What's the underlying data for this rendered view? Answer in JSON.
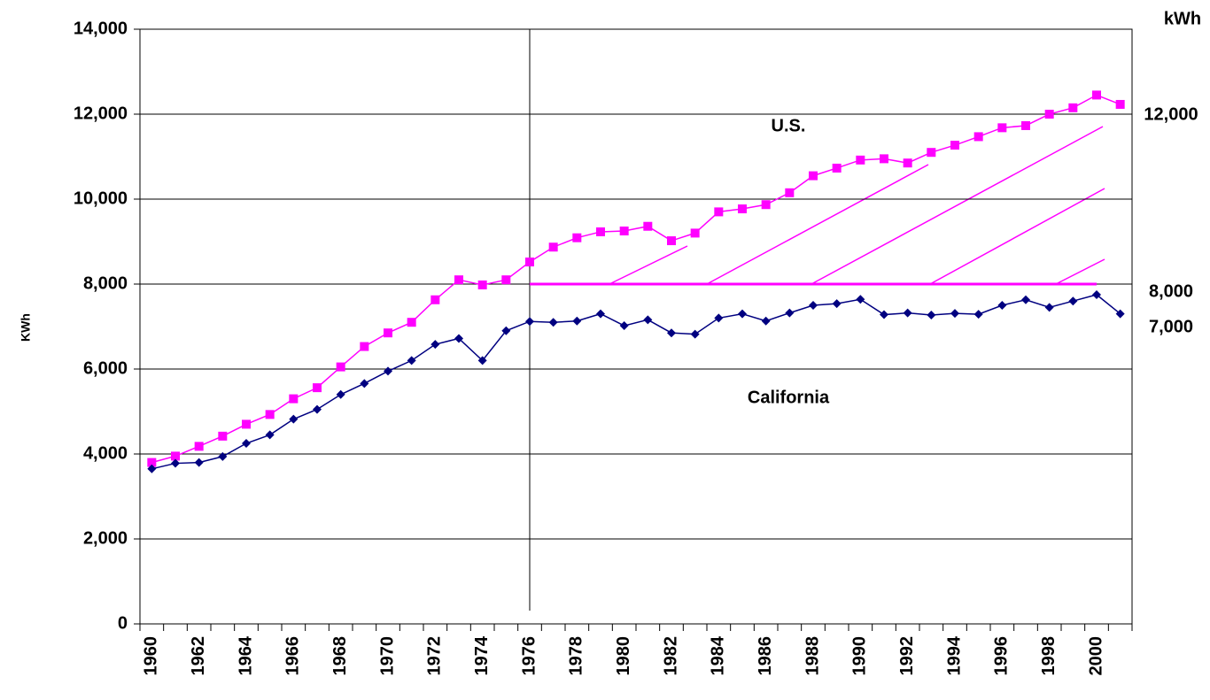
{
  "chart_data": {
    "type": "line",
    "y_label": "KWh",
    "categories": [
      "1960",
      null,
      "1962",
      null,
      "1964",
      null,
      "1966",
      null,
      "1968",
      null,
      "1970",
      null,
      "1972",
      null,
      "1974",
      null,
      "1976",
      null,
      "1978",
      null,
      "1980",
      null,
      "1982",
      null,
      "1984",
      null,
      "1986",
      null,
      "1988",
      null,
      "1990",
      null,
      "1992",
      null,
      "1994",
      null,
      "1996",
      null,
      "1998",
      null,
      "2000",
      null
    ],
    "series": [
      {
        "name": "U.S.",
        "color": "#ff00ff",
        "marker": "square",
        "values": [
          3800,
          3950,
          4180,
          4420,
          4700,
          4930,
          5300,
          5560,
          6050,
          6530,
          6850,
          7100,
          7630,
          8100,
          7980,
          8100,
          8520,
          8870,
          9090,
          9230,
          9250,
          9360,
          9020,
          9200,
          9700,
          9770,
          9870,
          10150,
          10550,
          10730,
          10920,
          10950,
          10850,
          11100,
          11270,
          11470,
          11680,
          11730,
          12000,
          12150,
          12450,
          12230
        ]
      },
      {
        "name": "California",
        "color": "#000080",
        "marker": "diamond",
        "values": [
          3650,
          3780,
          3800,
          3940,
          4250,
          4450,
          4820,
          5050,
          5400,
          5660,
          5950,
          6200,
          6580,
          6720,
          6200,
          6900,
          7120,
          7100,
          7130,
          7300,
          7020,
          7160,
          6850,
          6820,
          7200,
          7300,
          7130,
          7320,
          7500,
          7540,
          7640,
          7280,
          7320,
          7270,
          7310,
          7290,
          7500,
          7630,
          7450,
          7600,
          7750,
          7300
        ]
      }
    ],
    "ylim": [
      0,
      14000
    ],
    "yticks": [
      0,
      {
        "value": 2000,
        "label": "2,000"
      },
      {
        "value": 4000,
        "label": "4,000"
      },
      {
        "value": 6000,
        "label": "6,000"
      },
      {
        "value": 8000,
        "label": "8,000"
      },
      {
        "value": 10000,
        "label": "10,000"
      },
      {
        "value": 12000,
        "label": "12,000"
      },
      {
        "value": 14000,
        "label": "14,000"
      }
    ],
    "grid": true,
    "reference_value": 8000,
    "divider_category": "1976",
    "annotations": [
      "kWh",
      "12,000",
      "8,000",
      "7,000"
    ]
  }
}
